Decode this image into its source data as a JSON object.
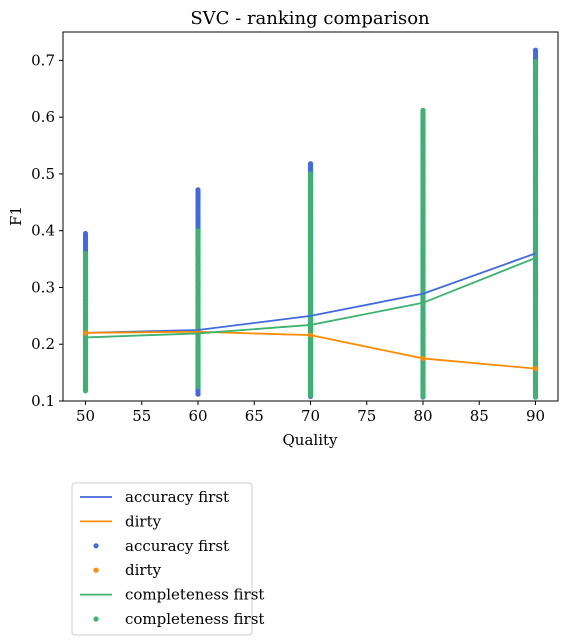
{
  "chart_data": {
    "type": "scatter",
    "title": "SVC - ranking comparison",
    "xlabel": "Quality",
    "ylabel": "F1",
    "xlim": [
      48,
      92
    ],
    "ylim": [
      0.1,
      0.75
    ],
    "xticks": [
      50,
      55,
      60,
      65,
      70,
      75,
      80,
      85,
      90
    ],
    "yticks": [
      0.1,
      0.2,
      0.3,
      0.4,
      0.5,
      0.6,
      0.7
    ],
    "x": [
      50,
      60,
      70,
      80,
      90
    ],
    "grid": false,
    "legend_position": "below",
    "series": [
      {
        "name": "accuracy first",
        "kind": "line",
        "color": "#4169e1",
        "values": [
          0.22,
          0.225,
          0.25,
          0.289,
          0.36
        ]
      },
      {
        "name": "dirty",
        "kind": "line",
        "color": "#ff8c00",
        "values": [
          0.22,
          0.222,
          0.216,
          0.175,
          0.157
        ]
      },
      {
        "name": "accuracy first",
        "kind": "scatter",
        "color": "#4169e1",
        "ranges": [
          [
            0.12,
            0.395
          ],
          [
            0.112,
            0.472
          ],
          [
            0.108,
            0.518
          ],
          [
            0.107,
            0.6
          ],
          [
            0.107,
            0.718
          ]
        ]
      },
      {
        "name": "dirty",
        "kind": "scatter",
        "color": "#ff8c00",
        "values": [
          0.22,
          0.222,
          0.216,
          0.175,
          0.157
        ]
      },
      {
        "name": "completeness first",
        "kind": "line",
        "color": "#3cb371",
        "values": [
          0.212,
          0.219,
          0.234,
          0.273,
          0.352
        ]
      },
      {
        "name": "completeness first",
        "kind": "scatter",
        "color": "#3cb371",
        "ranges": [
          [
            0.118,
            0.36
          ],
          [
            0.125,
            0.4
          ],
          [
            0.11,
            0.5
          ],
          [
            0.108,
            0.612
          ],
          [
            0.107,
            0.698
          ]
        ]
      }
    ]
  }
}
